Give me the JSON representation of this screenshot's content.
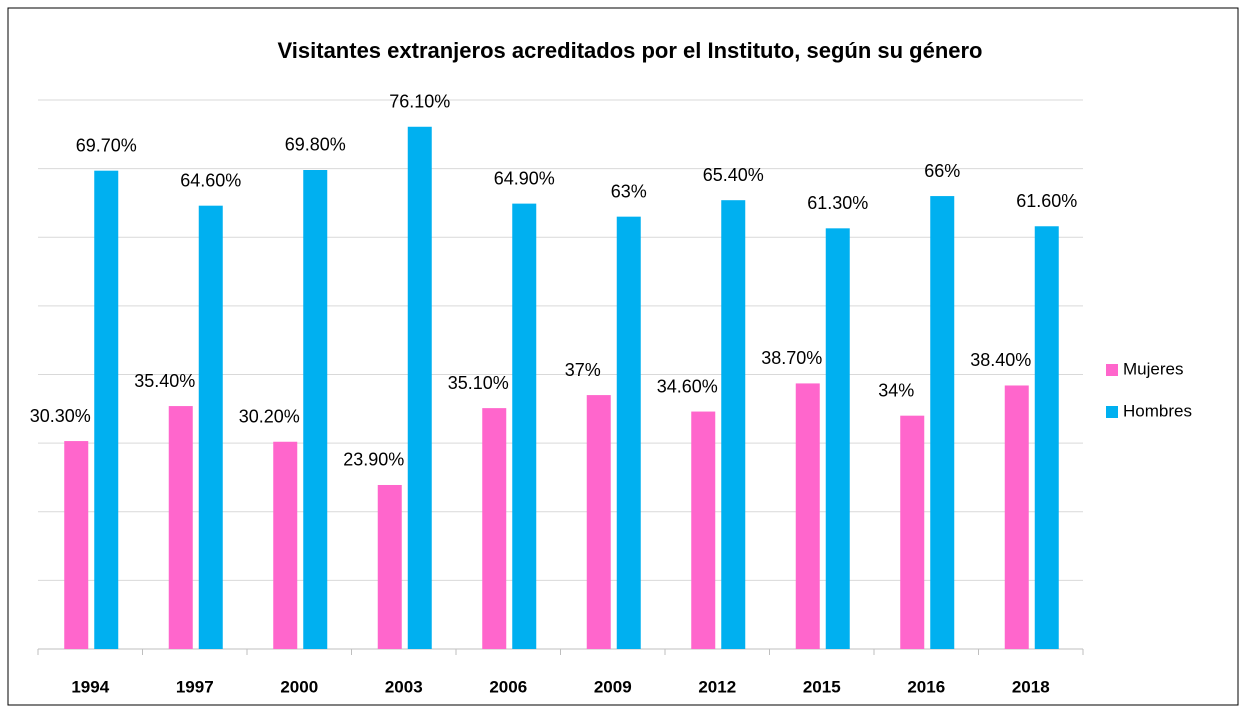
{
  "chart_data": {
    "type": "bar",
    "title": "Visitantes extranjeros acreditados por el Instituto, según su género",
    "categories": [
      "1994",
      "1997",
      "2000",
      "2003",
      "2006",
      "2009",
      "2012",
      "2015",
      "2016",
      "2018"
    ],
    "series": [
      {
        "name": "Mujeres",
        "color": "#ff66cc",
        "values": [
          30.3,
          35.4,
          30.2,
          23.9,
          35.1,
          37,
          34.6,
          38.7,
          34,
          38.4
        ],
        "value_labels": [
          "30.30%",
          "35.40%",
          "30.20%",
          "23.90%",
          "35.10%",
          "37%",
          "34.60%",
          "38.70%",
          "34%",
          "38.40%"
        ]
      },
      {
        "name": "Hombres",
        "color": "#00b0f0",
        "values": [
          69.7,
          64.6,
          69.8,
          76.1,
          64.9,
          63,
          65.4,
          61.3,
          66,
          61.6
        ],
        "value_labels": [
          "69.70%",
          "64.60%",
          "69.80%",
          "76.10%",
          "64.90%",
          "63%",
          "65.40%",
          "61.30%",
          "66%",
          "61.60%"
        ]
      }
    ],
    "ylim": [
      0,
      80
    ],
    "yticks": [
      0,
      10,
      20,
      30,
      40,
      50,
      60,
      70,
      80
    ],
    "grid": true,
    "legend": "right"
  }
}
